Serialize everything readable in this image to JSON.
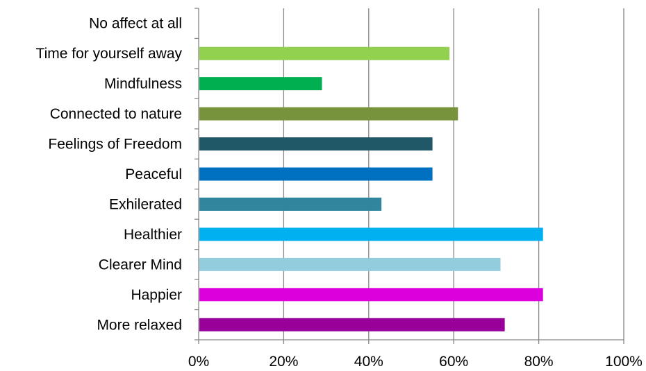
{
  "chart_data": {
    "type": "bar",
    "orientation": "horizontal",
    "categories": [
      "No affect at all",
      "Time for yourself away",
      "Mindfulness",
      "Connected to nature",
      "Feelings of Freedom",
      "Peaceful",
      "Exhilerated",
      "Healthier",
      "Clearer Mind",
      "Happier",
      "More relaxed"
    ],
    "values": [
      0,
      59,
      29,
      61,
      55,
      55,
      43,
      81,
      71,
      81,
      72
    ],
    "colors": [
      "#ffffff",
      "#92d050",
      "#00b050",
      "#77933c",
      "#215868",
      "#0070c0",
      "#31859c",
      "#00b0f0",
      "#93cddd",
      "#dc00dc",
      "#990099"
    ],
    "x_ticks": [
      "0%",
      "20%",
      "40%",
      "60%",
      "80%",
      "100%"
    ],
    "xlim": [
      0,
      100
    ],
    "grid": true,
    "legend": false,
    "title": "",
    "xlabel": "",
    "ylabel": ""
  }
}
